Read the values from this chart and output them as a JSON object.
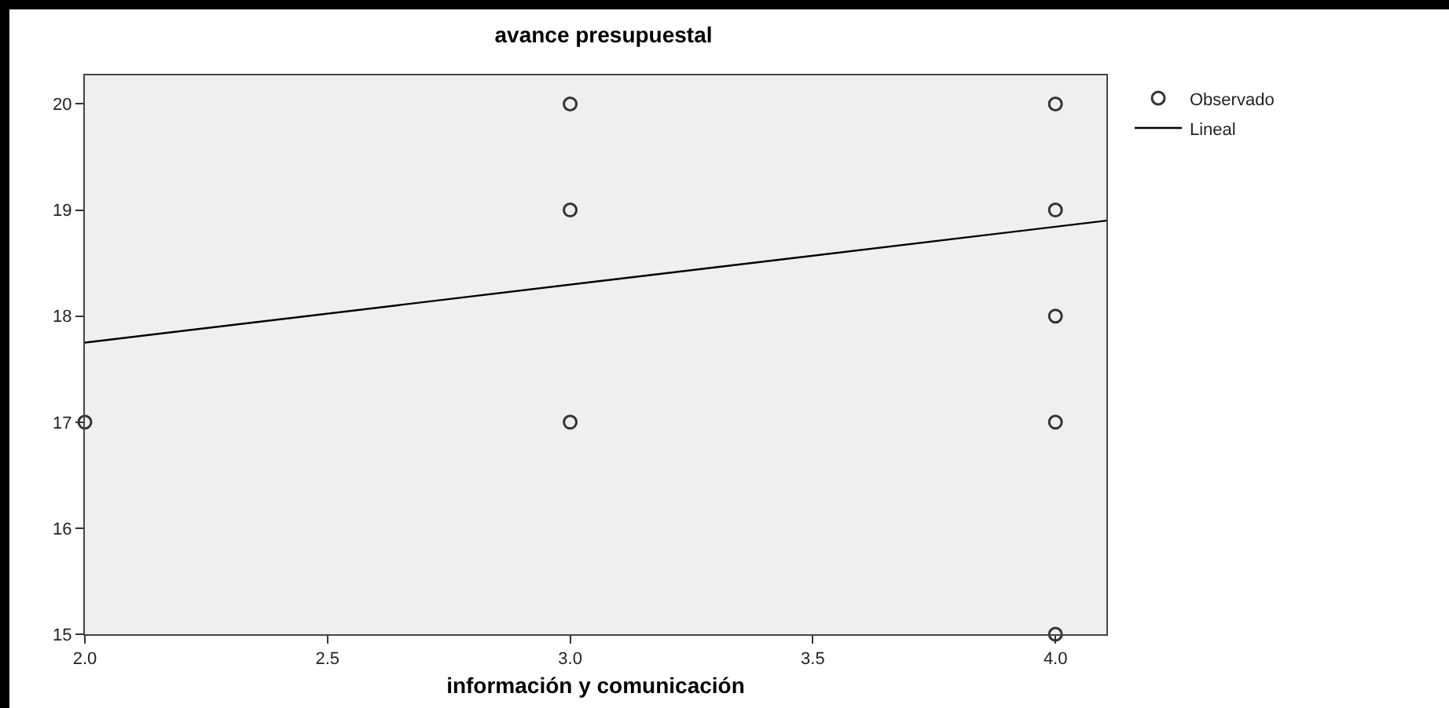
{
  "chart_data": {
    "type": "scatter",
    "title": "avance presupuestal",
    "xlabel": "información y comunicación",
    "xlim": [
      2.0,
      4.105
    ],
    "ylim": [
      15,
      20.27
    ],
    "xticks": [
      {
        "value": 2,
        "label": "2.0"
      },
      {
        "value": 2.5,
        "label": "2.5"
      },
      {
        "value": 3,
        "label": "3.0"
      },
      {
        "value": 3.5,
        "label": "3.5"
      },
      {
        "value": 4,
        "label": "4.0"
      }
    ],
    "yticks": [
      15,
      16,
      17,
      18,
      19,
      20
    ],
    "grid": false,
    "legend": "top right",
    "marker": "circle",
    "series": [
      {
        "name": "Observado",
        "type": "scatter",
        "color": "#333333",
        "x": [
          2,
          3,
          3,
          3,
          4,
          4,
          4,
          4,
          4
        ],
        "values": [
          17,
          20,
          19,
          17,
          20,
          19,
          18,
          17,
          15
        ]
      },
      {
        "name": "Lineal",
        "type": "line",
        "color": "#000000",
        "marker": "none",
        "line_style": "solid",
        "x": [
          2,
          4.105
        ],
        "values": [
          17.75,
          18.9
        ]
      }
    ]
  }
}
